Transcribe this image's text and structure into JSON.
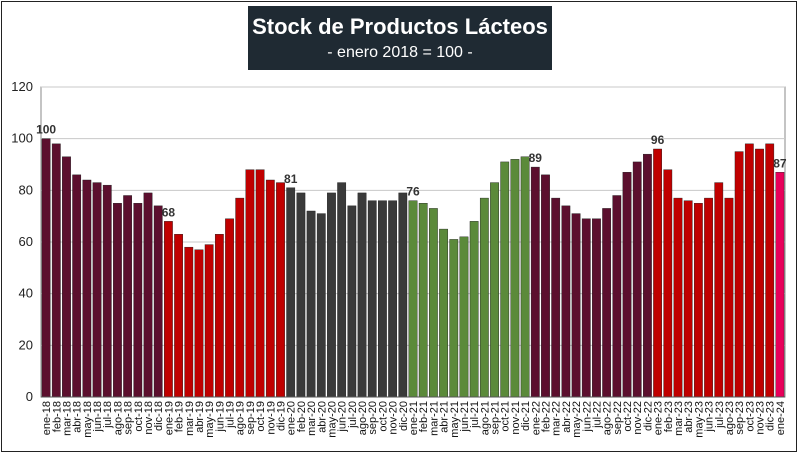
{
  "chart_data": {
    "type": "bar",
    "title": "Stock de Productos Lácteos",
    "subtitle": "- enero 2018 = 100 -",
    "ylim": [
      0,
      120
    ],
    "yticks": [
      0,
      20,
      40,
      60,
      80,
      100,
      120
    ],
    "grid": true,
    "categories": [
      "ene-18",
      "feb-18",
      "mar-18",
      "abr-18",
      "may-18",
      "jun-18",
      "jul-18",
      "ago-18",
      "sep-18",
      "oct-18",
      "nov-18",
      "dic-18",
      "ene-19",
      "feb-19",
      "mar-19",
      "abr-19",
      "may-19",
      "jun-19",
      "jul-19",
      "ago-19",
      "sep-19",
      "oct-19",
      "nov-19",
      "dic-19",
      "ene-20",
      "feb-20",
      "mar-20",
      "abr-20",
      "may-20",
      "jun-20",
      "jul-20",
      "ago-20",
      "sep-20",
      "oct-20",
      "nov-20",
      "dic-20",
      "ene-21",
      "feb-21",
      "mar-21",
      "abr-21",
      "may-21",
      "jun-21",
      "jul-21",
      "ago-21",
      "sep-21",
      "oct-21",
      "nov-21",
      "dic-21",
      "ene-22",
      "feb-22",
      "mar-22",
      "abr-22",
      "may-22",
      "jun-22",
      "jul-22",
      "ago-22",
      "sep-22",
      "oct-22",
      "nov-22",
      "dic-22",
      "ene-23",
      "feb-23",
      "mar-23",
      "abr-23",
      "may-23",
      "jun-23",
      "jul-23",
      "ago-23",
      "sep-23",
      "oct-23",
      "nov-23",
      "dic-23",
      "ene-24"
    ],
    "values": [
      100,
      98,
      93,
      86,
      84,
      83,
      82,
      75,
      78,
      75,
      79,
      74,
      68,
      63,
      58,
      57,
      59,
      63,
      69,
      77,
      88,
      88,
      84,
      83,
      81,
      79,
      72,
      71,
      79,
      83,
      74,
      79,
      76,
      76,
      76,
      79,
      76,
      75,
      73,
      65,
      61,
      62,
      68,
      77,
      83,
      91,
      92,
      93,
      89,
      86,
      77,
      74,
      71,
      69,
      69,
      73,
      78,
      87,
      91,
      94,
      96,
      88,
      77,
      76,
      75,
      77,
      83,
      77,
      95,
      98,
      96,
      98,
      87
    ],
    "year_colors": {
      "2018": "#5c0f2e",
      "2019": "#c00000",
      "2020": "#3a3a3a",
      "2021": "#5b8a3a",
      "2022": "#5c0f2e",
      "2023": "#c00000",
      "2024": "#e8005a"
    },
    "data_labels": [
      {
        "index": 0,
        "text": "100"
      },
      {
        "index": 12,
        "text": "68"
      },
      {
        "index": 24,
        "text": "81"
      },
      {
        "index": 36,
        "text": "76"
      },
      {
        "index": 48,
        "text": "89"
      },
      {
        "index": 60,
        "text": "96"
      },
      {
        "index": 72,
        "text": "87"
      }
    ]
  }
}
